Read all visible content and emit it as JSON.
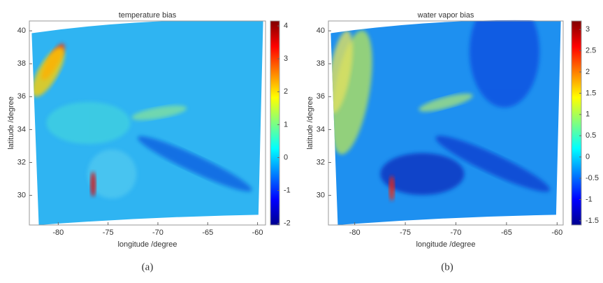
{
  "chart_data": [
    {
      "type": "heatmap",
      "title": "temperature bias",
      "xlabel": "longitude /degree",
      "ylabel": "latitude /degree",
      "xlim": [
        -82.9,
        -59.2
      ],
      "ylim": [
        28.2,
        40.6
      ],
      "xticks": [
        -80,
        -75,
        -70,
        -65,
        -60
      ],
      "yticks": [
        30,
        32,
        34,
        36,
        38,
        40
      ],
      "colormap": "jet",
      "clim": [
        -2.05,
        4.15
      ],
      "cticks": [
        -2,
        -1,
        0,
        1,
        2,
        3,
        4
      ],
      "panel_label": "(a)"
    },
    {
      "type": "heatmap",
      "title": "water vapor bias",
      "xlabel": "longitude /degree",
      "ylabel": "latitude /degree",
      "xlim": [
        -82.6,
        -59.4
      ],
      "ylim": [
        28.2,
        40.6
      ],
      "xticks": [
        -80,
        -75,
        -70,
        -65,
        -60
      ],
      "yticks": [
        30,
        32,
        34,
        36,
        38,
        40
      ],
      "colormap": "jet",
      "clim": [
        -1.6,
        3.2
      ],
      "cticks": [
        -1.5,
        -1,
        -0.5,
        0,
        0.5,
        1,
        1.5,
        2,
        2.5,
        3
      ],
      "panel_label": "(b)"
    }
  ]
}
